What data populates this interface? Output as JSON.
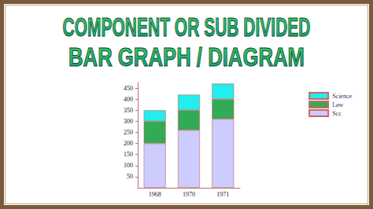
{
  "chart_data": {
    "type": "bar",
    "title": "COMPONENT OR SUB DIVIDED\nBAR GRAPH / DIAGRAM",
    "categories": [
      "1968",
      "1970",
      "1971"
    ],
    "series": [
      {
        "name": "Scc",
        "color": "#ccccff",
        "values": [
          200,
          260,
          310
        ]
      },
      {
        "name": "Law",
        "color": "#33aa55",
        "values": [
          100,
          90,
          90
        ]
      },
      {
        "name": "Science",
        "color": "#22eeee",
        "values": [
          50,
          70,
          70
        ]
      }
    ],
    "ylim": [
      0,
      475
    ],
    "yticks": [
      50,
      100,
      150,
      200,
      250,
      300,
      350,
      400,
      450
    ],
    "stacked": true,
    "grid": false,
    "legend": "upper right"
  }
}
